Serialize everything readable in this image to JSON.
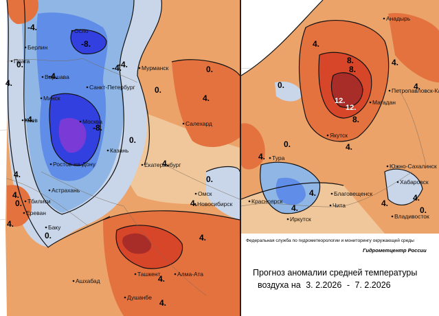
{
  "map": {
    "colors": {
      "background": "#ffffff",
      "cold_pale": "#c9d6ea",
      "cold_light": "#8fb6e4",
      "cold_mid": "#5f8de8",
      "cold_deep": "#3340e0",
      "cold_core": "#7a3ad6",
      "neutral_beige": "#f0c79a",
      "warm_light": "#eba36a",
      "warm_mid": "#e3723f",
      "warm_deep": "#d8462a",
      "warm_core": "#a82c28",
      "contour": "#111111",
      "border": "#9a8a7a"
    },
    "west_cities": [
      "Осло",
      "Берлин",
      "Прага",
      "Варшава",
      "Минск",
      "Санкт-Петербург",
      "Мурманск",
      "Москва",
      "Киев",
      "Казань",
      "Ростов-на-Дону",
      "Екатеринбург",
      "Астрахань",
      "Салехард",
      "Тбилиси",
      "Ереван",
      "Баку",
      "Омск",
      "Новосибирск",
      "Ашхабад",
      "Ташкент",
      "Алма-Ата",
      "Душанбе"
    ],
    "east_cities": [
      "Анадырь",
      "Магадан",
      "Петропавловск-Камчатский",
      "Якутск",
      "Тура",
      "Красноярск",
      "Иркутск",
      "Чита",
      "Благовещенск",
      "Южно-Сахалинск",
      "Хабаровск",
      "Владивосток"
    ],
    "west_labels": [
      "-4.",
      "-8.",
      "0.",
      "4.",
      "-4.",
      "0.",
      "-4.",
      "-8.",
      "-4.",
      "0.",
      "4.",
      "0.",
      "4.",
      "0.",
      "4.",
      "-4.",
      "4.",
      "0.",
      "4.",
      "0.",
      "4.",
      "4.",
      "4.",
      "4."
    ],
    "east_labels": [
      "4.",
      "8.",
      "12.",
      "12.",
      "8.",
      "4.",
      "0.",
      "4.",
      "0.",
      "4.",
      "4.",
      "4.",
      "0.",
      "4.",
      "4.",
      "8.",
      "4."
    ]
  },
  "footer": {
    "agency": "Федеральная служба по гидрометеорологии и мониторингу окружающей среды",
    "center": "Гидрометцентр России",
    "title_line1": "Прогноз аномалии средней температуры",
    "title_prefix": "воздуха на",
    "date_from": "3. 2.2026",
    "dash": "-",
    "date_to": "7. 2.2026"
  }
}
